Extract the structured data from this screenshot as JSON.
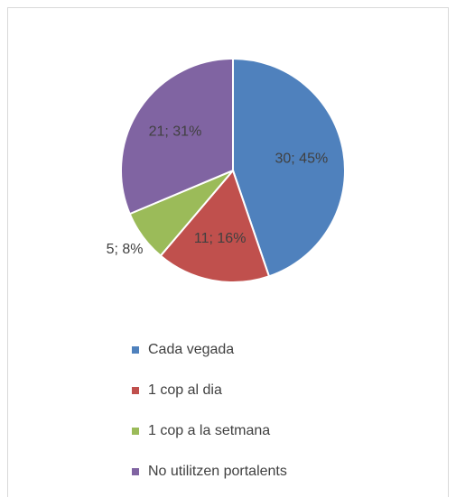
{
  "chart_data": {
    "type": "pie",
    "categories": [
      "Cada vegada",
      "1 cop al dia",
      "1 cop a la setmana",
      "No utilitzen portalents"
    ],
    "values": [
      30,
      11,
      5,
      21
    ],
    "value_labels": [
      "30; 45%",
      "11; 16%",
      "5; 8%",
      "21; 31%"
    ],
    "colors": [
      "#4f81bd",
      "#c0504d",
      "#9bbb59",
      "#8064a2"
    ],
    "legend": "bottom"
  }
}
